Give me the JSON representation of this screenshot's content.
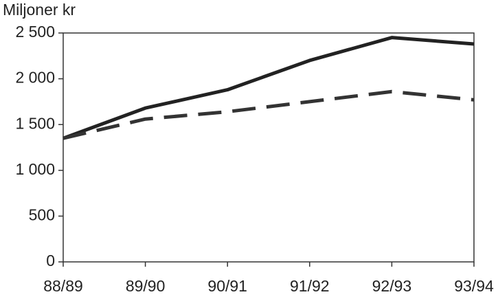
{
  "chart_data": {
    "type": "line",
    "y_label": "Miljoner kr",
    "categories": [
      "88/89",
      "89/90",
      "90/91",
      "91/92",
      "92/93",
      "93/94"
    ],
    "series": [
      {
        "color": "#222222",
        "style": "solid",
        "values": [
          1350,
          1680,
          1880,
          2200,
          2450,
          2380
        ]
      },
      {
        "color": "#333333",
        "style": "dashed",
        "values": [
          1350,
          1560,
          1640,
          1750,
          1860,
          1770
        ]
      }
    ],
    "ylim": [
      0,
      2500
    ],
    "yticks": [
      0,
      500,
      {
        "value": 1000,
        "label": "1 000"
      },
      {
        "value": 1500,
        "label": "1 500"
      },
      {
        "value": 2000,
        "label": "2 000"
      },
      {
        "value": 2500,
        "label": "2 500"
      }
    ]
  }
}
